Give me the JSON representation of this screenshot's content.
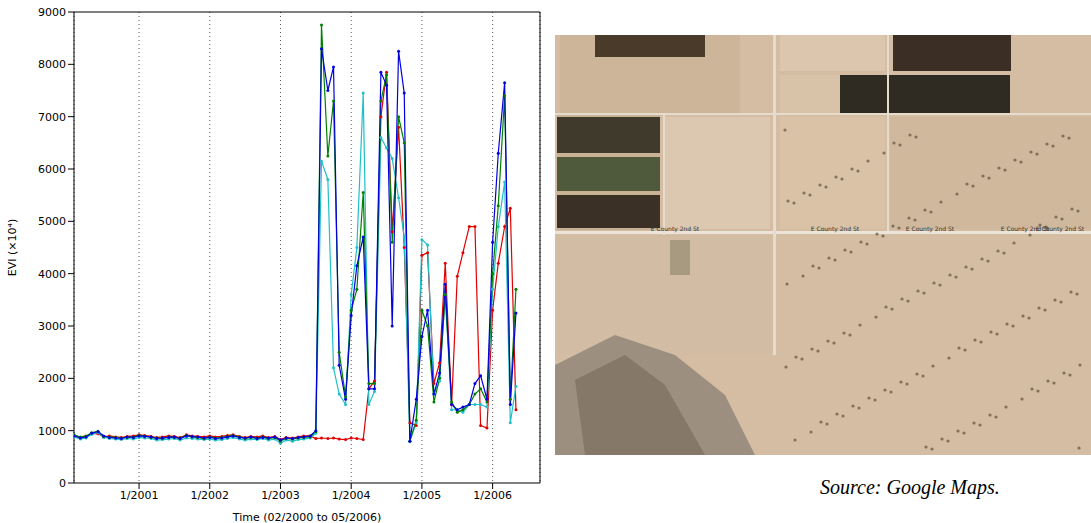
{
  "chart_data": {
    "type": "line",
    "x_label": "Time (02/2000 to 05/2006)",
    "y_label": "EVI (×10⁴)",
    "x": [
      2000.08,
      2000.17,
      2000.25,
      2000.33,
      2000.42,
      2000.5,
      2000.58,
      2000.67,
      2000.75,
      2000.83,
      2000.92,
      2001.0,
      2001.08,
      2001.17,
      2001.25,
      2001.33,
      2001.42,
      2001.5,
      2001.58,
      2001.67,
      2001.75,
      2001.83,
      2001.92,
      2002.0,
      2002.08,
      2002.17,
      2002.25,
      2002.33,
      2002.42,
      2002.5,
      2002.58,
      2002.67,
      2002.75,
      2002.83,
      2002.92,
      2003.0,
      2003.08,
      2003.17,
      2003.25,
      2003.33,
      2003.42,
      2003.5,
      2003.58,
      2003.67,
      2003.75,
      2003.83,
      2003.92,
      2004.0,
      2004.08,
      2004.17,
      2004.25,
      2004.33,
      2004.42,
      2004.5,
      2004.58,
      2004.67,
      2004.75,
      2004.83,
      2004.92,
      2005.0,
      2005.08,
      2005.17,
      2005.25,
      2005.33,
      2005.42,
      2005.5,
      2005.58,
      2005.67,
      2005.75,
      2005.83,
      2005.92,
      2006.0,
      2006.08,
      2006.17,
      2006.25,
      2006.33
    ],
    "xlim": [
      2000.08,
      2006.67
    ],
    "xticks": [
      {
        "value": 2001,
        "label": "1/2001"
      },
      {
        "value": 2002,
        "label": "1/2002"
      },
      {
        "value": 2003,
        "label": "1/2003"
      },
      {
        "value": 2004,
        "label": "1/2004"
      },
      {
        "value": 2005,
        "label": "1/2005"
      },
      {
        "value": 2006,
        "label": "1/2006"
      }
    ],
    "ylim": [
      0,
      9000
    ],
    "yticks": [
      0,
      1000,
      2000,
      3000,
      4000,
      5000,
      6000,
      7000,
      8000,
      9000
    ],
    "grid": "x",
    "marker": "circle",
    "series": [
      {
        "color": "#e00000",
        "values": [
          900,
          870,
          890,
          950,
          940,
          880,
          900,
          880,
          870,
          890,
          900,
          920,
          910,
          890,
          870,
          880,
          900,
          890,
          870,
          920,
          900,
          890,
          880,
          900,
          880,
          890,
          910,
          920,
          890,
          870,
          890,
          880,
          900,
          870,
          890,
          830,
          870,
          860,
          880,
          900,
          900,
          850,
          860,
          850,
          860,
          840,
          830,
          860,
          850,
          830,
          1800,
          1950,
          7000,
          7850,
          4800,
          6800,
          4500,
          1150,
          1100,
          4350,
          4400,
          1900,
          2300,
          4200,
          1500,
          3950,
          4400,
          4900,
          4900,
          1100,
          1050,
          3300,
          4200,
          4900,
          5250,
          1400
        ]
      },
      {
        "color": "#20c0c8",
        "values": [
          880,
          840,
          860,
          930,
          960,
          870,
          850,
          840,
          830,
          850,
          840,
          870,
          860,
          850,
          820,
          830,
          840,
          850,
          820,
          860,
          850,
          840,
          830,
          840,
          820,
          830,
          850,
          870,
          840,
          820,
          840,
          830,
          850,
          820,
          840,
          760,
          820,
          800,
          830,
          840,
          860,
          950,
          6150,
          5800,
          2200,
          1700,
          1500,
          3600,
          4500,
          7450,
          1500,
          1750,
          6600,
          6400,
          6200,
          5450,
          4700,
          800,
          1150,
          4650,
          4550,
          1700,
          1950,
          3600,
          1400,
          1400,
          1350,
          1500,
          1500,
          1500,
          1450,
          3700,
          4900,
          5750,
          1150,
          1850
        ]
      },
      {
        "color": "#008000",
        "values": [
          920,
          880,
          900,
          960,
          990,
          890,
          880,
          870,
          860,
          870,
          880,
          910,
          900,
          870,
          860,
          850,
          880,
          870,
          860,
          910,
          880,
          870,
          850,
          880,
          860,
          870,
          890,
          910,
          880,
          850,
          870,
          860,
          880,
          850,
          870,
          800,
          850,
          840,
          860,
          870,
          880,
          980,
          8750,
          6250,
          7300,
          2500,
          1650,
          3300,
          3700,
          5550,
          1900,
          1900,
          7300,
          7800,
          4600,
          7000,
          6500,
          800,
          1200,
          3300,
          3000,
          1550,
          2000,
          3600,
          1550,
          1350,
          1400,
          1500,
          1700,
          1800,
          1550,
          4000,
          5300,
          7400,
          1600,
          3700
        ]
      },
      {
        "color": "#0000e0",
        "values": [
          900,
          860,
          880,
          950,
          980,
          900,
          870,
          860,
          850,
          880,
          870,
          900,
          890,
          880,
          850,
          860,
          870,
          880,
          850,
          900,
          890,
          880,
          860,
          870,
          850,
          860,
          880,
          900,
          870,
          860,
          880,
          850,
          870,
          860,
          880,
          820,
          860,
          850,
          870,
          880,
          900,
          1000,
          8300,
          7500,
          7950,
          2250,
          1600,
          3200,
          4150,
          4700,
          1800,
          1800,
          7850,
          7600,
          3000,
          8250,
          7450,
          800,
          1600,
          2800,
          3300,
          1700,
          2100,
          3800,
          1500,
          1400,
          1450,
          1500,
          1900,
          2050,
          1600,
          4600,
          6300,
          7650,
          1500,
          3250
        ]
      }
    ]
  },
  "source": "Source: Google Maps.",
  "map": {
    "road_labels": [
      "E County 2nd St",
      "E County 2nd St",
      "E County 2nd St",
      "E County 2nd St",
      "E County 2nd St"
    ]
  }
}
